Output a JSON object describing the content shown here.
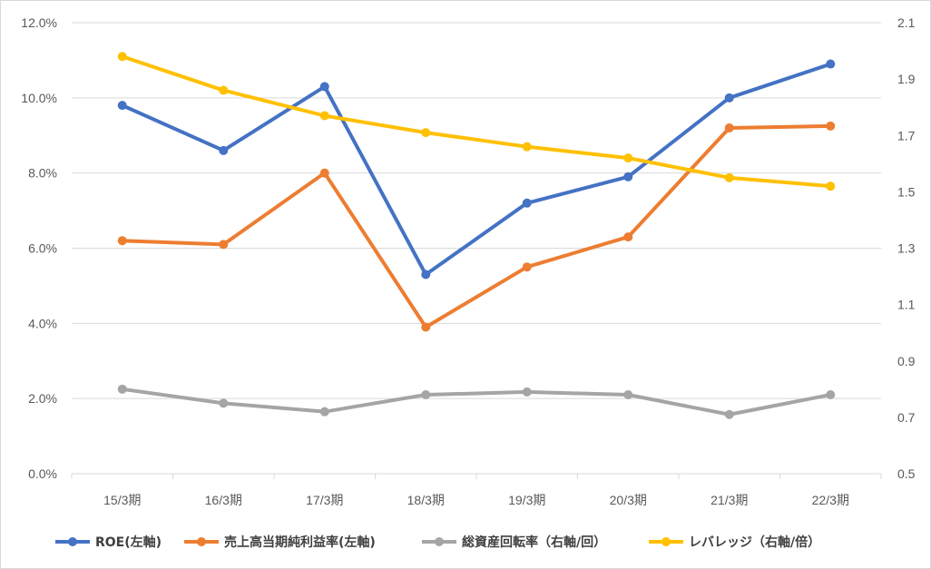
{
  "chart_data": {
    "type": "line",
    "categories": [
      "15/3期",
      "16/3期",
      "17/3期",
      "18/3期",
      "19/3期",
      "20/3期",
      "21/3期",
      "22/3期"
    ],
    "y_left": {
      "ylim": [
        0,
        12
      ],
      "ticks": [
        0,
        2,
        4,
        6,
        8,
        10,
        12
      ],
      "tick_labels": [
        "0.0%",
        "2.0%",
        "4.0%",
        "6.0%",
        "8.0%",
        "10.0%",
        "12.0%"
      ]
    },
    "y_right": {
      "ylim": [
        0.5,
        2.1
      ],
      "ticks": [
        0.5,
        0.7,
        0.9,
        1.1,
        1.3,
        1.5,
        1.7,
        1.9,
        2.1
      ],
      "tick_labels": [
        "0.5",
        "0.7",
        "0.9",
        "1.1",
        "1.3",
        "1.5",
        "1.7",
        "1.9",
        "2.1"
      ]
    },
    "grid": true,
    "legend_position": "bottom",
    "series": [
      {
        "name": "ROE(左軸)",
        "axis": "left",
        "color": "#4472C4",
        "values": [
          9.8,
          8.6,
          10.3,
          5.3,
          7.2,
          7.9,
          10.0,
          10.9
        ]
      },
      {
        "name": "売上高当期純利益率(左軸)",
        "axis": "left",
        "color": "#ED7D31",
        "values": [
          6.2,
          6.1,
          8.0,
          3.9,
          5.5,
          6.3,
          9.2,
          9.25
        ]
      },
      {
        "name": "総資産回転率（右軸/回）",
        "axis": "right",
        "color": "#A5A5A5",
        "values": [
          0.8,
          0.75,
          0.72,
          0.78,
          0.79,
          0.78,
          0.71,
          0.78
        ]
      },
      {
        "name": "レバレッジ（右軸/倍）",
        "axis": "right",
        "color": "#FFC000",
        "values": [
          1.98,
          1.86,
          1.77,
          1.71,
          1.66,
          1.62,
          1.55,
          1.52
        ]
      }
    ]
  }
}
